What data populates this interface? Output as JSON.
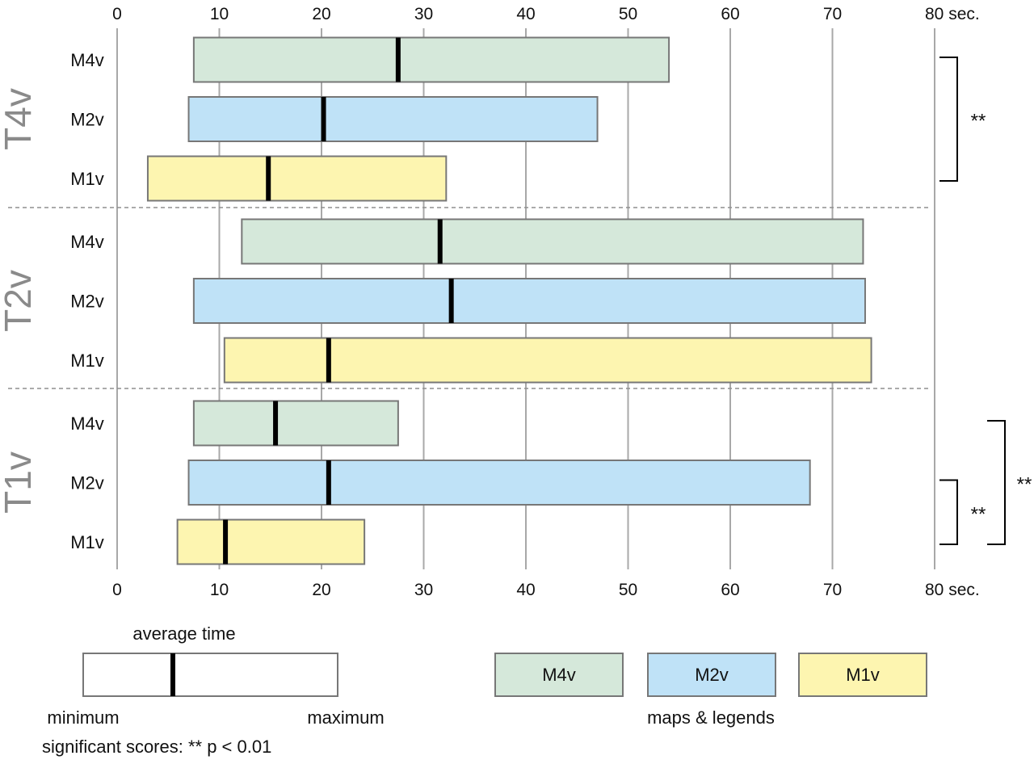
{
  "chart_data": {
    "type": "bar",
    "subtype": "floating-range",
    "x_unit": "sec.",
    "xlim": [
      0,
      80
    ],
    "x_ticks": [
      0,
      10,
      20,
      30,
      40,
      50,
      60,
      70,
      80
    ],
    "x_tick_labels": [
      "0",
      "10",
      "20",
      "30",
      "40",
      "50",
      "60",
      "70",
      "80 sec."
    ],
    "grid": true,
    "colors": {
      "M4v": "#d5e8da",
      "M2v": "#bfe2f7",
      "M1v": "#fdf5b0",
      "border": "#777777",
      "grid": "#a8a8a8",
      "mean": "#000000"
    },
    "groups": [
      {
        "name": "T4v",
        "rows": [
          {
            "label": "M4v",
            "min": 7.5,
            "mean": 27.5,
            "max": 54.0
          },
          {
            "label": "M2v",
            "min": 7.0,
            "mean": 20.2,
            "max": 47.0
          },
          {
            "label": "M1v",
            "min": 3.0,
            "mean": 14.8,
            "max": 32.2
          }
        ]
      },
      {
        "name": "T2v",
        "rows": [
          {
            "label": "M4v",
            "min": 12.2,
            "mean": 31.6,
            "max": 73.0
          },
          {
            "label": "M2v",
            "min": 7.5,
            "mean": 32.7,
            "max": 73.2
          },
          {
            "label": "M1v",
            "min": 10.5,
            "mean": 20.7,
            "max": 73.8
          }
        ]
      },
      {
        "name": "T1v",
        "rows": [
          {
            "label": "M4v",
            "min": 7.5,
            "mean": 15.5,
            "max": 27.5
          },
          {
            "label": "M2v",
            "min": 7.0,
            "mean": 20.7,
            "max": 67.8
          },
          {
            "label": "M1v",
            "min": 5.9,
            "mean": 10.6,
            "max": 24.2
          }
        ]
      }
    ],
    "significance": [
      {
        "group": "T4v",
        "from": "M4v",
        "to": "M1v",
        "label": "**"
      },
      {
        "group": "T1v",
        "from": "M2v",
        "to": "M1v",
        "label": "**"
      },
      {
        "group": "T1v",
        "from": "M4v",
        "to": "M1v",
        "label": "**"
      }
    ],
    "legend": {
      "average_time": "average time",
      "minimum": "minimum",
      "maximum": "maximum",
      "significant": "significant scores: ** p < 0.01",
      "series": [
        "M4v",
        "M2v",
        "M1v"
      ],
      "series_caption": "maps & legends"
    }
  }
}
